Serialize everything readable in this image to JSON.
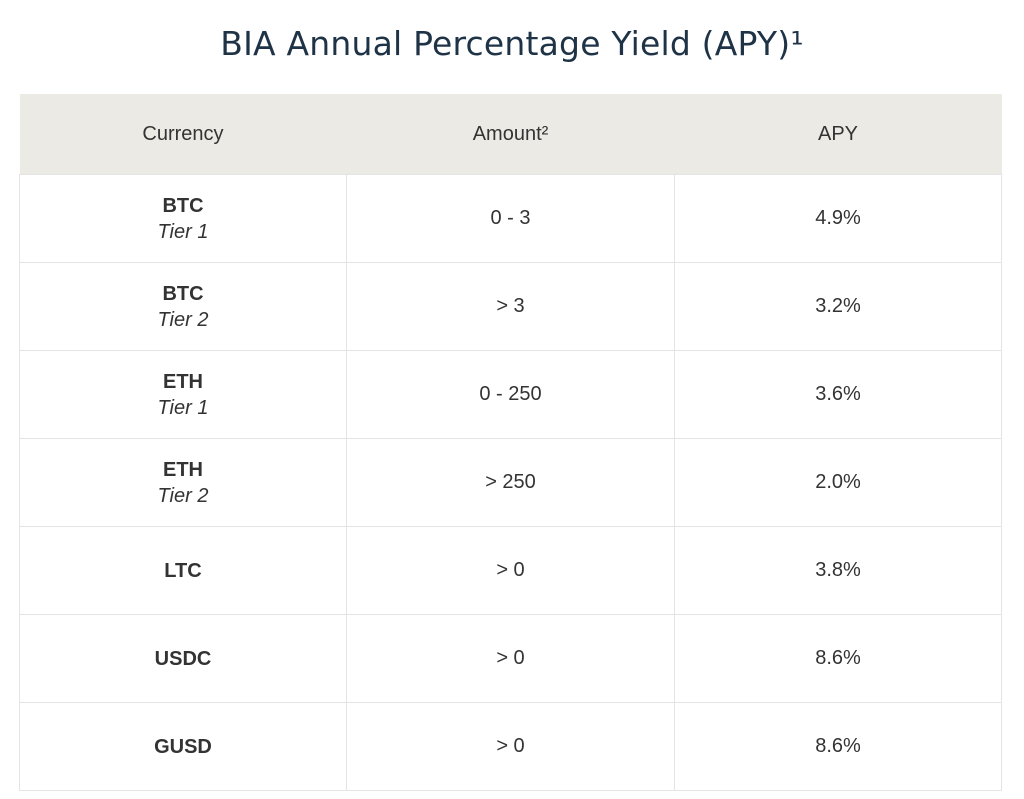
{
  "title": "BIA Annual Percentage Yield (APY)¹",
  "table": {
    "headers": {
      "currency": "Currency",
      "amount": "Amount²",
      "apy": "APY"
    },
    "rows": [
      {
        "currency": "BTC",
        "tier": "Tier 1",
        "amount": "0 - 3",
        "apy": "4.9%"
      },
      {
        "currency": "BTC",
        "tier": "Tier 2",
        "amount": "> 3",
        "apy": "3.2%"
      },
      {
        "currency": "ETH",
        "tier": "Tier 1",
        "amount": "0 - 250",
        "apy": "3.6%"
      },
      {
        "currency": "ETH",
        "tier": "Tier 2",
        "amount": "> 250",
        "apy": "2.0%"
      },
      {
        "currency": "LTC",
        "tier": "",
        "amount": "> 0",
        "apy": "3.8%"
      },
      {
        "currency": "USDC",
        "tier": "",
        "amount": "> 0",
        "apy": "8.6%"
      },
      {
        "currency": "GUSD",
        "tier": "",
        "amount": "> 0",
        "apy": "8.6%"
      }
    ]
  },
  "colors": {
    "title": "#1f3347",
    "header_background": "#ebeae5",
    "border": "#e4e4e4",
    "text": "#333333"
  }
}
